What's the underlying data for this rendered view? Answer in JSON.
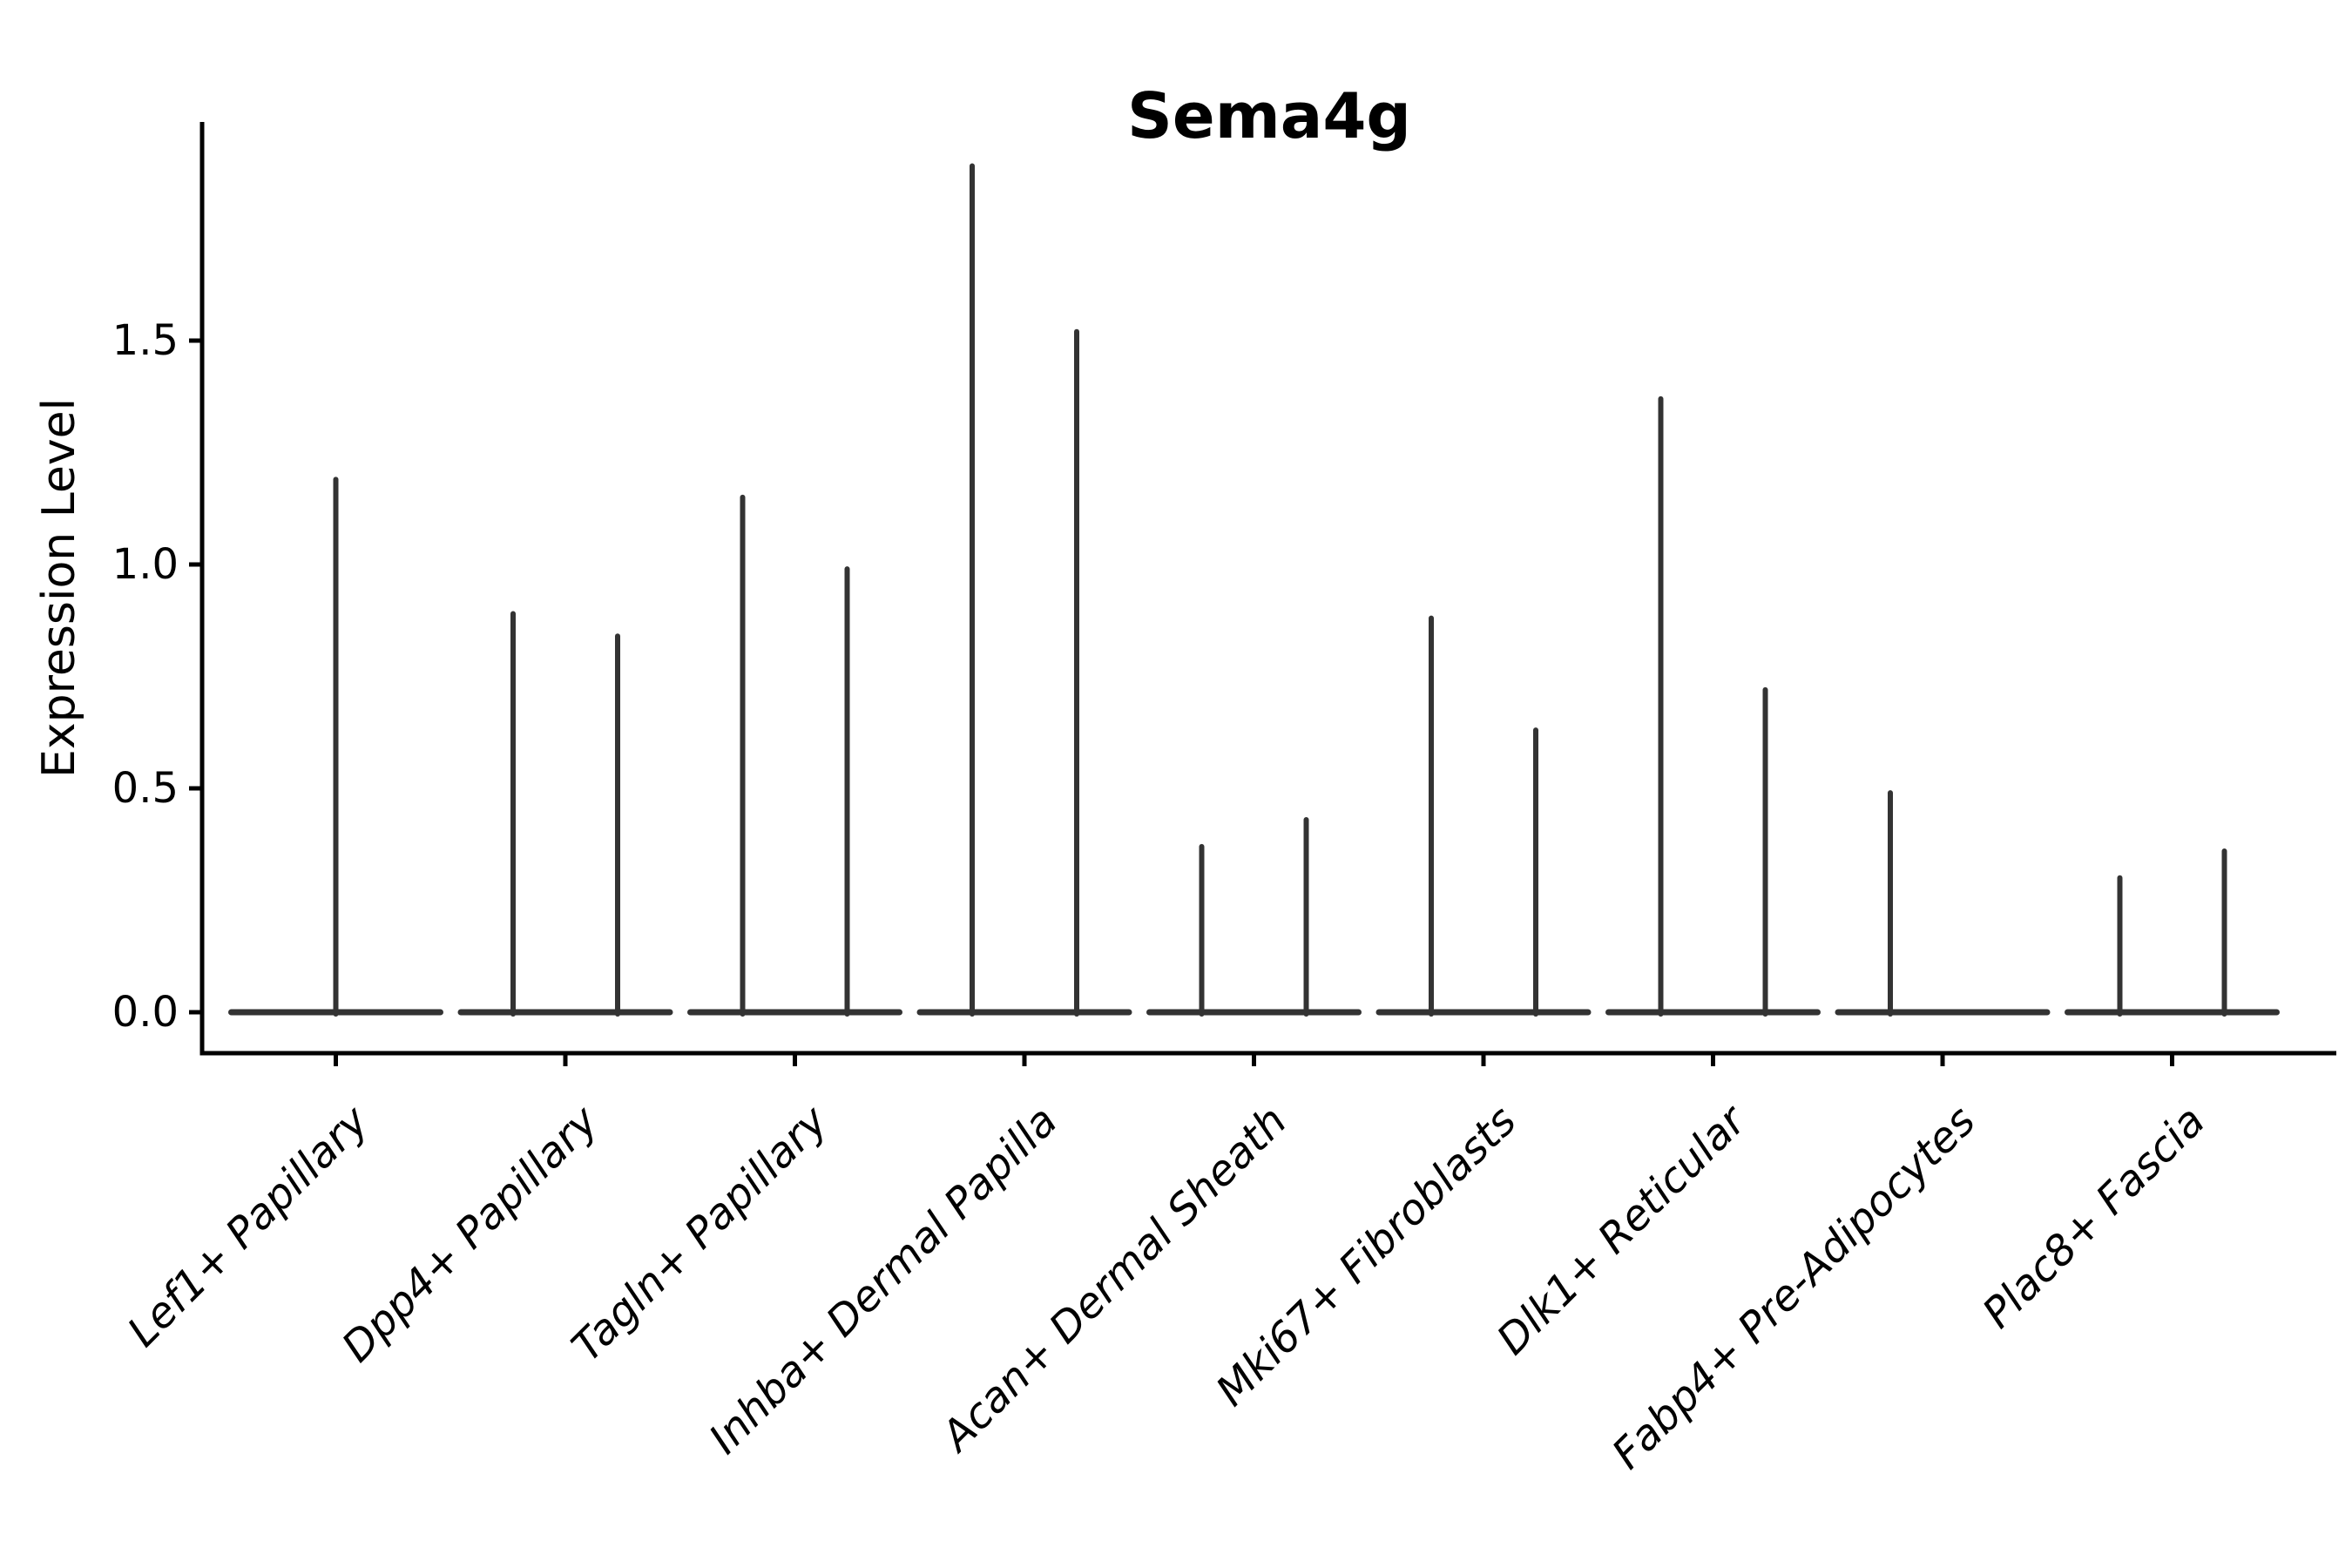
{
  "figure": {
    "background": "#ffffff"
  },
  "chart_data": {
    "type": "violin",
    "title": "Sema4g",
    "ylabel": "Expression Level",
    "xlabel": "",
    "grid": false,
    "legend": null,
    "ylim": [
      -0.09,
      1.99
    ],
    "yticks": [
      {
        "value": 0.0,
        "label": "0.0"
      },
      {
        "value": 0.5,
        "label": "0.5"
      },
      {
        "value": 1.0,
        "label": "1.0"
      },
      {
        "value": 1.5,
        "label": "1.5"
      }
    ],
    "categories": [
      {
        "label": "Lef1+ Papillary",
        "violins": [
          {
            "position": "center",
            "max_expression": 1.19
          }
        ]
      },
      {
        "label": "Dpp4+ Papillary",
        "violins": [
          {
            "position": "left",
            "max_expression": 0.89
          },
          {
            "position": "right",
            "max_expression": 0.84
          }
        ]
      },
      {
        "label": "Tagln+ Papillary",
        "violins": [
          {
            "position": "left",
            "max_expression": 1.15
          },
          {
            "position": "right",
            "max_expression": 0.99
          }
        ]
      },
      {
        "label": "Inhba+ Dermal Papilla",
        "violins": [
          {
            "position": "left",
            "max_expression": 1.89
          },
          {
            "position": "right",
            "max_expression": 1.52
          }
        ]
      },
      {
        "label": "Acan+ Dermal Sheath",
        "violins": [
          {
            "position": "left",
            "max_expression": 0.37
          },
          {
            "position": "right",
            "max_expression": 0.43
          }
        ]
      },
      {
        "label": "Mki67+ Fibroblasts",
        "violins": [
          {
            "position": "left",
            "max_expression": 0.88
          },
          {
            "position": "right",
            "max_expression": 0.63
          }
        ]
      },
      {
        "label": "Dlk1+ Reticular",
        "violins": [
          {
            "position": "left",
            "max_expression": 1.37
          },
          {
            "position": "right",
            "max_expression": 0.72
          }
        ]
      },
      {
        "label": "Fabp4+ Pre-Adipocytes",
        "violins": [
          {
            "position": "left",
            "max_expression": 0.49
          }
        ]
      },
      {
        "label": "Plac8+ Fascia",
        "violins": [
          {
            "position": "left",
            "max_expression": 0.3
          },
          {
            "position": "right",
            "max_expression": 0.36
          }
        ]
      }
    ],
    "colors": {
      "violin": "#333333",
      "axis": "#000000",
      "text": "#000000"
    }
  }
}
